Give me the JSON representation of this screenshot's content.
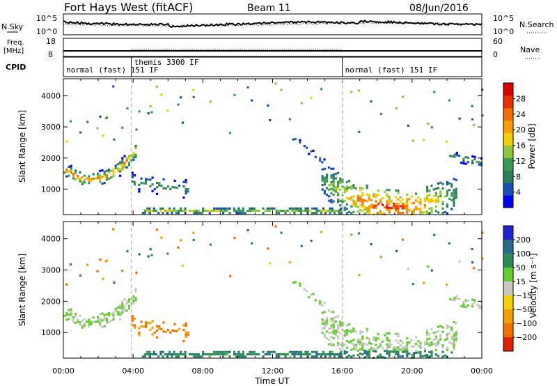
{
  "header": {
    "station": "Fort Hays West (fitACF)",
    "beam": "Beam 11",
    "date": "08/Jun/2016"
  },
  "noise_panel": {
    "left_label": "N.Sky",
    "right_label": "N.Search",
    "tick_top": "10^5",
    "tick_bottom": "10^0"
  },
  "freq_panel": {
    "left_label_top": "Freq.",
    "left_label_unit": "[MHz]",
    "right_label": "Nave",
    "left_ticks": [
      "18",
      "8"
    ],
    "right_ticks": [
      "60",
      "0"
    ]
  },
  "cpid": {
    "label": "CPID",
    "segments": [
      {
        "text": "normal (fast) 151 IF",
        "start_hour": 0
      },
      {
        "text": "themis 3300 IF",
        "start_hour": 3.9
      },
      {
        "text": "normal (fast) 151 IF",
        "start_hour": 16.0
      }
    ]
  },
  "colors": {
    "power_scale": [
      "#0000ee",
      "#1b4fb8",
      "#2f7f5a",
      "#3c9a56",
      "#8fc63c",
      "#f2d000",
      "#f5a000",
      "#f07000",
      "#e83000",
      "#dd0000"
    ],
    "velocity_scale": [
      "#2222cc",
      "#2a6a8a",
      "#2e8b57",
      "#66cc33",
      "#c8c8c0",
      "#f5d000",
      "#f0a000",
      "#f07000",
      "#e02000"
    ]
  },
  "chart_data": [
    {
      "type": "heatmap",
      "panel": "power",
      "ylabel": "Slant Range [km]",
      "y_ticks": [
        1000,
        2000,
        3000,
        4000
      ],
      "ylim": [
        180,
        4550
      ],
      "xlim": [
        0,
        24
      ],
      "colorbar": {
        "label": "Power [dB]",
        "tick_labels": [
          "4",
          "8",
          "12",
          "16",
          "20",
          "24",
          "28"
        ],
        "range": [
          0,
          30
        ]
      },
      "features": [
        {
          "name": "morning-arc",
          "from_hour": 0.0,
          "to_hour": 4.2,
          "range_start_km": 1650,
          "range_mid_km": 1350,
          "range_end_km": 2300,
          "peak_db": 26
        },
        {
          "name": "themis-patches",
          "from_hour": 3.9,
          "to_hour": 7.2,
          "range_start_km": 1250,
          "range_end_km": 1000,
          "peak_db": 12
        },
        {
          "name": "near-range-band",
          "from_hour": 4.5,
          "to_hour": 16.0,
          "range_start_km": 300,
          "range_end_km": 300,
          "peak_db": 16
        },
        {
          "name": "afternoon-arc",
          "from_hour": 13.0,
          "to_hour": 15.5,
          "range_start_km": 2700,
          "range_end_km": 1600,
          "peak_db": 10
        },
        {
          "name": "evening-bowl",
          "from_hour": 14.8,
          "to_hour": 22.5,
          "range_start_km": 1300,
          "range_mid_km": 420,
          "range_end_km": 900,
          "peak_db": 30
        },
        {
          "name": "late-evening-band",
          "from_hour": 22.0,
          "to_hour": 24.0,
          "range_start_km": 2100,
          "range_end_km": 1850,
          "peak_db": 12
        }
      ]
    },
    {
      "type": "heatmap",
      "panel": "velocity",
      "ylabel": "Slant Range [km]",
      "xlabel": "Time UT",
      "x_tick_labels": [
        "00:00",
        "04:00",
        "08:00",
        "12:00",
        "16:00",
        "20:00",
        "00:00"
      ],
      "y_ticks": [
        1000,
        2000,
        3000,
        4000
      ],
      "ylim": [
        180,
        4550
      ],
      "xlim": [
        0,
        24
      ],
      "colorbar": {
        "label": "Velocity [m s⁻¹]",
        "tick_labels": [
          "200",
          "100",
          "50",
          "15",
          "−15",
          "−50",
          "−100",
          "−200"
        ],
        "range": [
          -250,
          250
        ]
      },
      "features": [
        {
          "name": "morning-arc",
          "from_hour": 0.0,
          "to_hour": 4.2,
          "velocity_ms": 0
        },
        {
          "name": "themis-patches",
          "from_hour": 3.9,
          "to_hour": 7.2,
          "velocity_ms": -80
        },
        {
          "name": "near-range-band",
          "from_hour": 4.5,
          "to_hour": 16.0,
          "velocity_ms": 60
        },
        {
          "name": "afternoon-arc",
          "from_hour": 13.0,
          "to_hour": 15.5,
          "velocity_ms": 0
        },
        {
          "name": "evening-bowl",
          "from_hour": 14.8,
          "to_hour": 22.5,
          "velocity_ms": 0
        },
        {
          "name": "late-evening-band",
          "from_hour": 22.0,
          "to_hour": 24.0,
          "velocity_ms": 0
        }
      ]
    }
  ]
}
